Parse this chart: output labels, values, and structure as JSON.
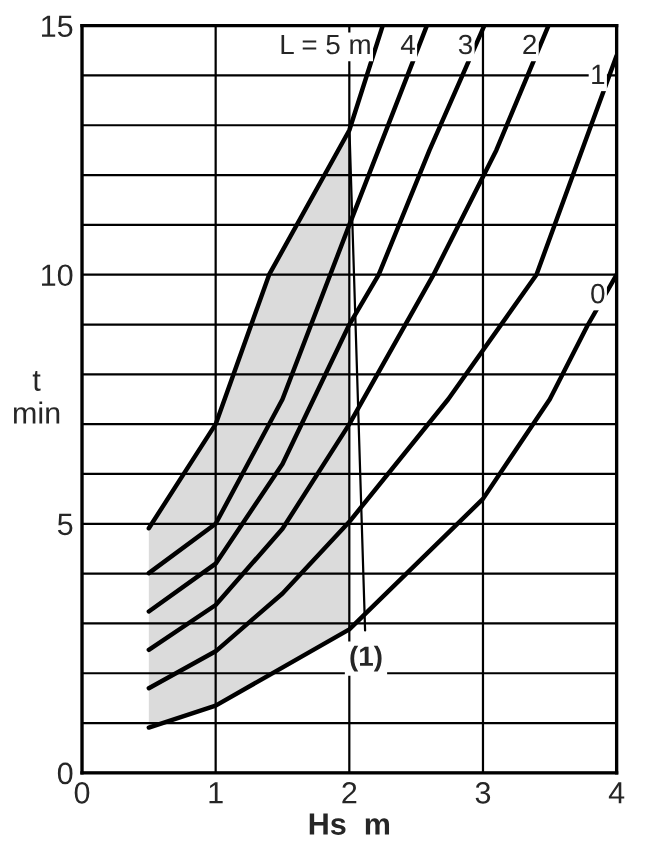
{
  "chart_data": {
    "type": "line",
    "xlabel": "Hs  m",
    "ylabel": "t\nmin",
    "series": [
      {
        "name": "L = 5 m",
        "color": "#000000",
        "x": [
          0.5,
          1,
          1.4,
          2,
          2.25
        ],
        "values": [
          4.91,
          7.0,
          10,
          12.9,
          15
        ],
        "lower": [
          0.91,
          1.35,
          1.9,
          2.88,
          null
        ],
        "upper": [
          4.91,
          7.0,
          10,
          12.9,
          null
        ]
      },
      {
        "name": "4",
        "color": "#000000",
        "x": [
          0.5,
          1,
          1.5,
          2,
          2.58
        ],
        "values": [
          4.01,
          5.0,
          7.5,
          11.0,
          15
        ]
      },
      {
        "name": "3",
        "color": "#000000",
        "x": [
          0.5,
          1,
          1.5,
          2,
          2.22,
          2.6,
          3.01
        ],
        "values": [
          3.24,
          4.2,
          6.2,
          9.0,
          10,
          12.5,
          15
        ]
      },
      {
        "name": "2",
        "color": "#000000",
        "x": [
          0.5,
          1,
          1.5,
          2,
          2.63,
          3.1,
          3.49
        ],
        "values": [
          2.47,
          3.37,
          4.9,
          7.0,
          10,
          12.5,
          15
        ]
      },
      {
        "name": "1",
        "color": "#000000",
        "x": [
          0.5,
          1,
          1.5,
          2,
          2.74,
          3.4,
          4
        ],
        "values": [
          1.7,
          2.44,
          3.6,
          5.04,
          7.5,
          10,
          14.4
        ]
      },
      {
        "name": "0",
        "color": "#000000",
        "x": [
          0.5,
          1,
          2,
          3,
          3.5,
          3.78,
          4
        ],
        "values": [
          0.91,
          1.35,
          2.88,
          5.5,
          7.5,
          8.97,
          10.0
        ]
      }
    ],
    "annotations": [
      {
        "text": "(1)",
        "x": 2.0,
        "y": 13.0
      }
    ],
    "xlim": [
      0,
      4
    ],
    "ylim": [
      0,
      15
    ],
    "xticks": [
      0,
      1,
      2,
      3,
      4
    ],
    "yticks": [
      0,
      {
        "value": 1,
        "label": null
      },
      {
        "value": 2,
        "label": null
      },
      {
        "value": 3,
        "label": null
      },
      {
        "value": 4,
        "label": null
      },
      5,
      {
        "value": 6,
        "label": null
      },
      {
        "value": 7,
        "label": null
      },
      {
        "value": 8,
        "label": null
      },
      {
        "value": 9,
        "label": null
      },
      10,
      {
        "value": 11,
        "label": null
      },
      {
        "value": 12,
        "label": null
      },
      {
        "value": 13,
        "label": null
      },
      {
        "value": 14,
        "label": null
      },
      15
    ],
    "grid": true,
    "legend": false,
    "marker": "none",
    "line_style": "solid"
  }
}
